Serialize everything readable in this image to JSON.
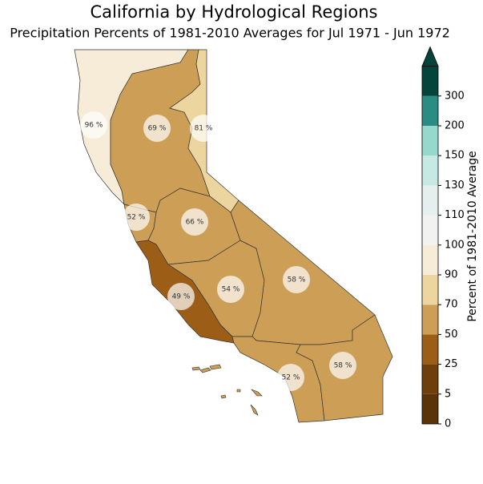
{
  "title": "California by Hydrological Regions",
  "subtitle": "Precipitation Percents of 1981-2010 Averages for Jul 1971 - Jun 1972",
  "regions": [
    {
      "value": 96,
      "label": "96 %"
    },
    {
      "value": 69,
      "label": "69 %"
    },
    {
      "value": 81,
      "label": "81 %"
    },
    {
      "value": 52,
      "label": "52 %"
    },
    {
      "value": 66,
      "label": "66 %"
    },
    {
      "value": 54,
      "label": "54 %"
    },
    {
      "value": 49,
      "label": "49 %"
    },
    {
      "value": 58,
      "label": "58 %"
    },
    {
      "value": 52,
      "label": "52 %"
    },
    {
      "value": 58,
      "label": "58 %"
    }
  ],
  "colorbar": {
    "label": "Percent of 1981-2010 Average",
    "ticks": [
      0,
      5,
      25,
      50,
      70,
      90,
      100,
      110,
      130,
      150,
      200,
      300
    ],
    "colors": [
      "#5a3408",
      "#6e3f0c",
      "#9c5e17",
      "#cd9f56",
      "#ecd59f",
      "#f6ecd8",
      "#f2f2f1",
      "#e5efed",
      "#c6eae3",
      "#97d8cc",
      "#2a8c83",
      "#05443b"
    ]
  }
}
